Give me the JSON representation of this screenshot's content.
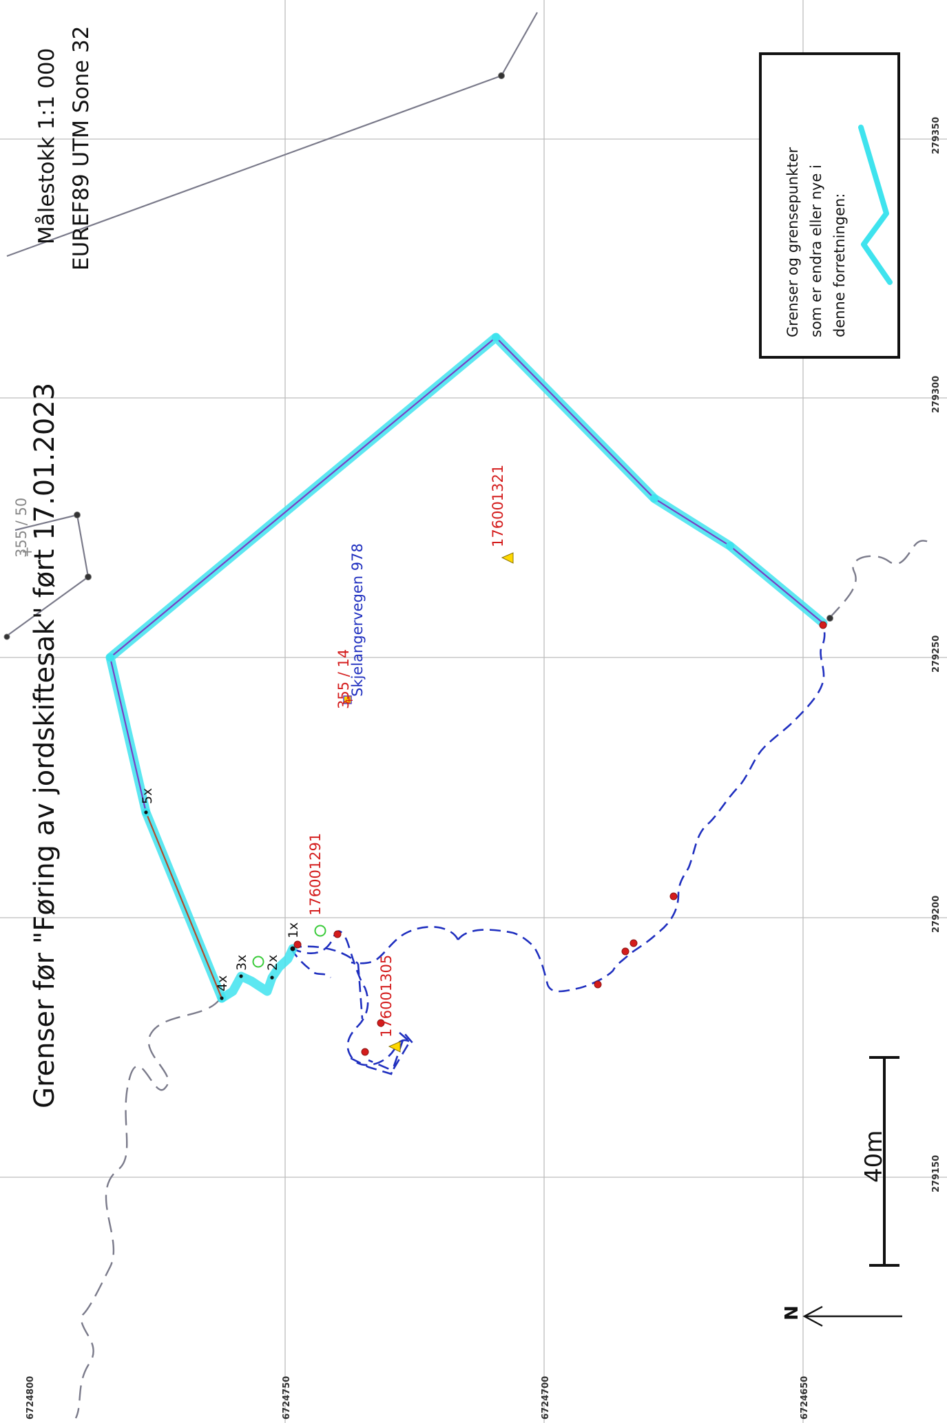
{
  "title": "Grenser før \"Føring av jordskiftesak\" ført 17.01.2023",
  "scale": "Målestokk 1:1 000",
  "projection": "EUREF89 UTM Sone 32",
  "legend": {
    "line1": "Grenser og grensepunkter",
    "line2": "som er endra eller nye i",
    "line3": "denne forretningen:"
  },
  "scale_bar_label": "40m",
  "north_label": "N",
  "grid_easting": [
    "279150",
    "279200",
    "279250",
    "279300",
    "279350"
  ],
  "grid_northing": [
    "6724800",
    "6724750",
    "6724700",
    "6724650"
  ],
  "parcels": {
    "main": "355 / 14",
    "neighbour": "355 / 50"
  },
  "address": "Skjelangervegen 978",
  "buildings": [
    "176001321",
    "176001291",
    "176001305"
  ],
  "point_labels": [
    "1x",
    "2x",
    "3x",
    "4x",
    "5x"
  ],
  "colors": {
    "changed_boundary": "#3fe3ee",
    "boundary_line": "#7a3fc4",
    "existing_boundary": "#1f2fbf",
    "neighbour_boundary": "#7a7a8a",
    "label_red": "#d41c1c",
    "label_blue": "#1f2fbf"
  }
}
